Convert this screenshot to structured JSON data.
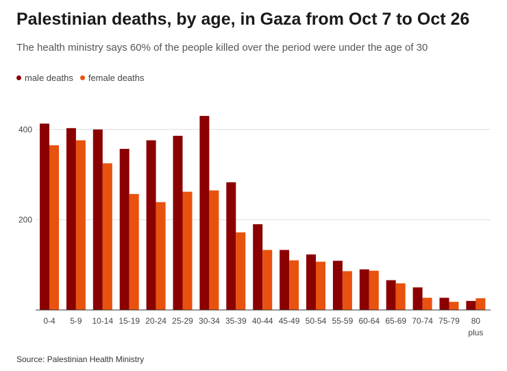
{
  "chart_data": {
    "type": "bar",
    "title": "Palestinian deaths, by age, in Gaza from Oct 7 to Oct 26",
    "subtitle": "The health ministry says 60% of the people killed over the period were under the age of 30",
    "source": "Source: Palestinian Health Ministry",
    "categories": [
      "0-4",
      "5-9",
      "10-14",
      "15-19",
      "20-24",
      "25-29",
      "30-34",
      "35-39",
      "40-44",
      "45-49",
      "50-54",
      "55-59",
      "60-64",
      "65-69",
      "70-74",
      "75-79",
      "80 plus"
    ],
    "series": [
      {
        "name": "male deaths",
        "color": "#8b0000",
        "values": [
          413,
          403,
          400,
          357,
          376,
          386,
          430,
          283,
          190,
          133,
          123,
          109,
          90,
          66,
          50,
          27,
          20
        ]
      },
      {
        "name": "female deaths",
        "color": "#e8520e",
        "values": [
          365,
          376,
          325,
          257,
          239,
          262,
          265,
          172,
          133,
          110,
          107,
          86,
          87,
          59,
          27,
          18,
          26
        ]
      }
    ],
    "ylim": [
      0,
      500
    ],
    "yticks": [
      200,
      400
    ],
    "grid": true,
    "legend": "top-left"
  }
}
